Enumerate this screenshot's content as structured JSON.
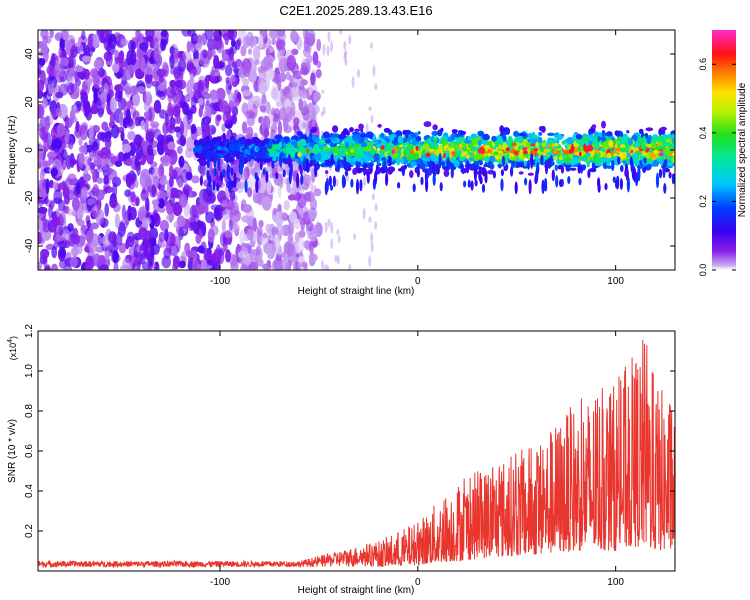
{
  "title": "C2E1.2025.289.13.43.E16",
  "colors": {
    "signal_red": "#e8362e",
    "axis": "#000000",
    "background": "#ffffff"
  },
  "chart_data": [
    {
      "type": "heatmap",
      "title": "C2E1.2025.289.13.43.E16",
      "xlabel": "Height of straight line (km)",
      "ylabel": "Frequency (Hz)",
      "xlim": [
        -192,
        130
      ],
      "ylim": [
        -50,
        50
      ],
      "x_ticks": [
        -100,
        0,
        100
      ],
      "y_ticks": [
        -40,
        -20,
        0,
        20,
        40
      ],
      "colorbar": {
        "label": "Normalized spectral amplitude",
        "range": [
          0,
          0.7
        ],
        "ticks": [
          0.0,
          0.2,
          0.4,
          0.6
        ],
        "colormap": "rainbow (purple-blue-cyan-green-yellow-orange-red-magenta)"
      },
      "features": [
        {
          "name": "noise-field",
          "x_range": [
            -192,
            -60
          ],
          "freq_range": [
            -50,
            50
          ],
          "amplitude": 0.05
        },
        {
          "name": "signal-band",
          "x_range": [
            -112,
            130
          ],
          "center_freq": 0,
          "half_width_hz": 7,
          "amplitude_range": [
            0.1,
            0.7
          ]
        }
      ]
    },
    {
      "type": "line",
      "title": "",
      "xlabel": "Height of straight line (km)",
      "ylabel": "SNR (10 * v/v)",
      "y_multiplier": "(x10",
      "y_multiplier_exponent": "4",
      "y_multiplier_close": ")",
      "xlim": [
        -192,
        130
      ],
      "ylim": [
        0,
        1.2
      ],
      "x_ticks": [
        -100,
        0,
        100
      ],
      "y_ticks": [
        0.2,
        0.4,
        0.6,
        0.8,
        1.0,
        1.2
      ],
      "series": [
        {
          "name": "SNR",
          "envelope": {
            "x": [
              -192,
              -150,
              -100,
              -60,
              -40,
              -20,
              0,
              20,
              40,
              60,
              80,
              100,
              110,
              115,
              120,
              130
            ],
            "upper": [
              0.05,
              0.05,
              0.05,
              0.05,
              0.1,
              0.15,
              0.25,
              0.45,
              0.55,
              0.65,
              0.85,
              0.95,
              1.1,
              1.2,
              0.95,
              0.85
            ],
            "lower": [
              0.02,
              0.02,
              0.02,
              0.02,
              0.02,
              0.02,
              0.03,
              0.05,
              0.07,
              0.08,
              0.1,
              0.1,
              0.12,
              0.12,
              0.1,
              0.1
            ]
          }
        }
      ]
    }
  ]
}
